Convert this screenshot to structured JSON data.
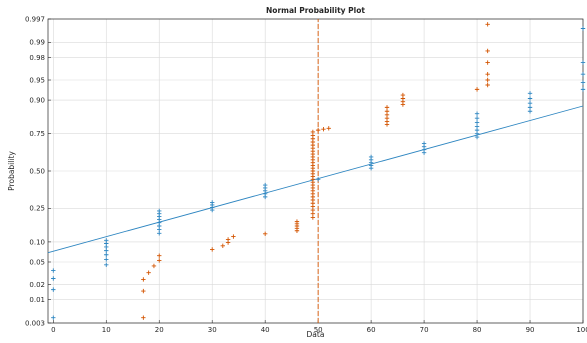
{
  "chart_data": {
    "type": "scatter",
    "title": "Normal Probability Plot",
    "xlabel": "Data",
    "ylabel": "Probability",
    "xlim": [
      -1,
      100
    ],
    "ylim": [
      0.003,
      0.997
    ],
    "y_scale": "normal probability",
    "grid": true,
    "x_ticks": [
      "0",
      "10",
      "20",
      "30",
      "40",
      "50",
      "60",
      "70",
      "80",
      "90",
      "100"
    ],
    "y_ticks": [
      "0.003",
      "0.01",
      "0.02",
      "0.05",
      "0.10",
      "0.25",
      "0.50",
      "0.75",
      "0.90",
      "0.95",
      "0.98",
      "0.99",
      "0.997"
    ],
    "colors": {
      "blue": "#2e86c1",
      "orange": "#d35400",
      "axis": "#262626",
      "grid": "#d9d9d9"
    },
    "series": [
      {
        "color": "#2e86c1",
        "marker": "+",
        "fit_line": [
          [
            -1,
            0.07
          ],
          [
            100,
            0.88
          ]
        ],
        "points": [
          [
            0,
            0.004
          ],
          [
            0,
            0.016
          ],
          [
            0,
            0.026
          ],
          [
            0,
            0.036
          ],
          [
            10,
            0.045
          ],
          [
            10,
            0.055
          ],
          [
            10,
            0.065
          ],
          [
            10,
            0.075
          ],
          [
            10,
            0.085
          ],
          [
            10,
            0.095
          ],
          [
            10,
            0.105
          ],
          [
            20,
            0.13
          ],
          [
            20,
            0.145
          ],
          [
            20,
            0.16
          ],
          [
            20,
            0.175
          ],
          [
            20,
            0.19
          ],
          [
            20,
            0.205
          ],
          [
            20,
            0.22
          ],
          [
            20,
            0.235
          ],
          [
            30,
            0.24
          ],
          [
            30,
            0.255
          ],
          [
            30,
            0.27
          ],
          [
            30,
            0.285
          ],
          [
            40,
            0.32
          ],
          [
            40,
            0.34
          ],
          [
            40,
            0.36
          ],
          [
            40,
            0.38
          ],
          [
            40,
            0.4
          ],
          [
            50,
            0.44
          ],
          [
            60,
            0.52
          ],
          [
            60,
            0.54
          ],
          [
            60,
            0.56
          ],
          [
            60,
            0.58
          ],
          [
            60,
            0.6
          ],
          [
            70,
            0.63
          ],
          [
            70,
            0.65
          ],
          [
            70,
            0.67
          ],
          [
            70,
            0.69
          ],
          [
            80,
            0.73
          ],
          [
            80,
            0.75
          ],
          [
            80,
            0.77
          ],
          [
            80,
            0.79
          ],
          [
            80,
            0.81
          ],
          [
            80,
            0.83
          ],
          [
            80,
            0.85
          ],
          [
            90,
            0.86
          ],
          [
            90,
            0.875
          ],
          [
            90,
            0.89
          ],
          [
            90,
            0.905
          ],
          [
            90,
            0.92
          ],
          [
            100,
            0.93
          ],
          [
            100,
            0.945
          ],
          [
            100,
            0.96
          ],
          [
            100,
            0.975
          ],
          [
            100,
            0.995
          ]
        ]
      },
      {
        "color": "#d35400",
        "marker": "+",
        "fit_line": [
          [
            50,
            0.003
          ],
          [
            50,
            0.997
          ]
        ],
        "points": [
          [
            17,
            0.004
          ],
          [
            17,
            0.015
          ],
          [
            17,
            0.025
          ],
          [
            18,
            0.033
          ],
          [
            19,
            0.043
          ],
          [
            20,
            0.053
          ],
          [
            20,
            0.063
          ],
          [
            30,
            0.078
          ],
          [
            32,
            0.088
          ],
          [
            33,
            0.098
          ],
          [
            33,
            0.108
          ],
          [
            34,
            0.118
          ],
          [
            40,
            0.128
          ],
          [
            46,
            0.14
          ],
          [
            46,
            0.15
          ],
          [
            46,
            0.16
          ],
          [
            46,
            0.17
          ],
          [
            46,
            0.18
          ],
          [
            49,
            0.2
          ],
          [
            49,
            0.22
          ],
          [
            49,
            0.24
          ],
          [
            49,
            0.26
          ],
          [
            49,
            0.28
          ],
          [
            49,
            0.3
          ],
          [
            49,
            0.32
          ],
          [
            49,
            0.34
          ],
          [
            49,
            0.36
          ],
          [
            49,
            0.38
          ],
          [
            49,
            0.4
          ],
          [
            49,
            0.42
          ],
          [
            49,
            0.44
          ],
          [
            49,
            0.46
          ],
          [
            49,
            0.48
          ],
          [
            49,
            0.5
          ],
          [
            49,
            0.52
          ],
          [
            49,
            0.54
          ],
          [
            49,
            0.56
          ],
          [
            49,
            0.58
          ],
          [
            49,
            0.6
          ],
          [
            49,
            0.62
          ],
          [
            49,
            0.64
          ],
          [
            49,
            0.66
          ],
          [
            49,
            0.68
          ],
          [
            49,
            0.7
          ],
          [
            49,
            0.72
          ],
          [
            49,
            0.74
          ],
          [
            49,
            0.76
          ],
          [
            50,
            0.77
          ],
          [
            51,
            0.775
          ],
          [
            52,
            0.78
          ],
          [
            63,
            0.8
          ],
          [
            63,
            0.815
          ],
          [
            63,
            0.83
          ],
          [
            63,
            0.845
          ],
          [
            63,
            0.86
          ],
          [
            63,
            0.875
          ],
          [
            66,
            0.885
          ],
          [
            66,
            0.895
          ],
          [
            66,
            0.905
          ],
          [
            66,
            0.915
          ],
          [
            80,
            0.93
          ],
          [
            82,
            0.94
          ],
          [
            82,
            0.95
          ],
          [
            82,
            0.96
          ],
          [
            82,
            0.975
          ],
          [
            82,
            0.985
          ],
          [
            82,
            0.996
          ]
        ]
      }
    ]
  }
}
